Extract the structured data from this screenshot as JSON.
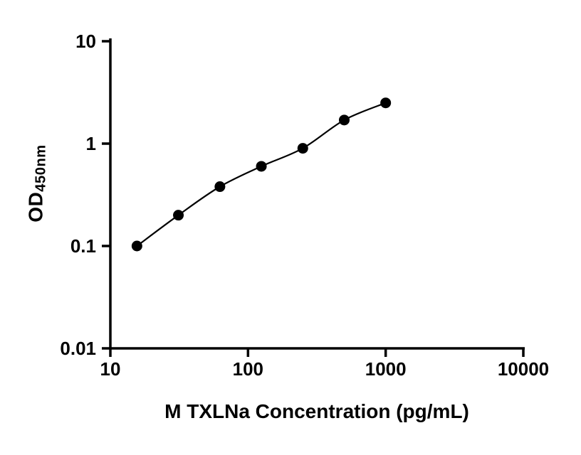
{
  "chart_data": {
    "type": "scatter",
    "title": "",
    "xlabel": "M TXLNa Concentration (pg/mL)",
    "ylabel_main": "OD",
    "ylabel_sub": "450nm",
    "x": [
      15.6,
      31.2,
      62.5,
      125,
      250,
      500,
      1000
    ],
    "y": [
      0.1,
      0.2,
      0.38,
      0.6,
      0.9,
      1.7,
      2.5
    ],
    "xscale": "log",
    "yscale": "log",
    "xlim": [
      10,
      10000
    ],
    "ylim": [
      0.01,
      10
    ],
    "x_tick_labels": [
      "10",
      "100",
      "1000",
      "10000"
    ],
    "y_tick_labels": [
      "0.01",
      "0.1",
      "1",
      "10"
    ],
    "grid": false,
    "legend": "none",
    "axis_color": "#000000",
    "line_color": "#000000",
    "marker_color": "#000000",
    "marker_radius": 7.5
  }
}
